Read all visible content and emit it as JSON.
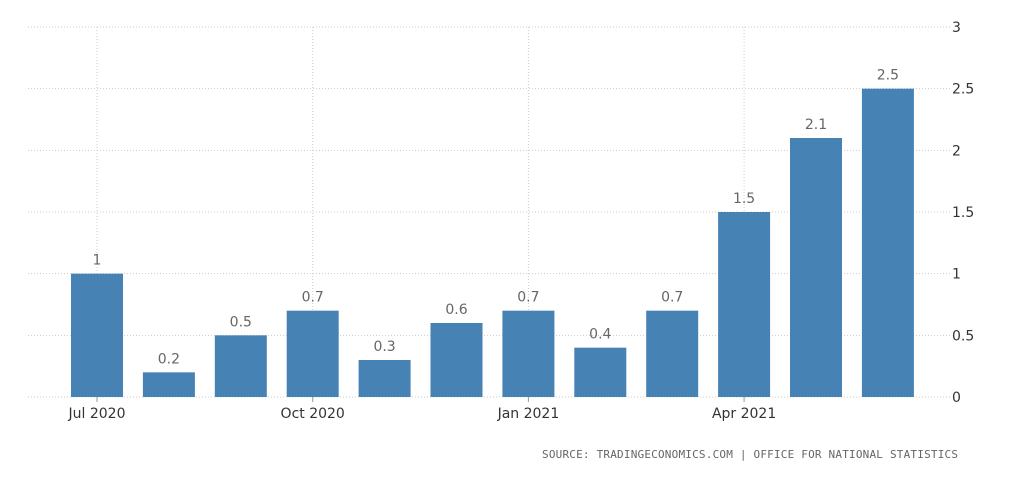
{
  "chart_data": {
    "type": "bar",
    "x": [
      "2020-07",
      "2020-08",
      "2020-09",
      "2020-10",
      "2020-11",
      "2020-12",
      "2021-01",
      "2021-02",
      "2021-03",
      "2021-04",
      "2021-05",
      "2021-06"
    ],
    "values": [
      1,
      0.2,
      0.5,
      0.7,
      0.3,
      0.6,
      0.7,
      0.4,
      0.7,
      1.5,
      2.1,
      2.5
    ],
    "data_labels": [
      "1",
      "0.2",
      "0.5",
      "0.7",
      "0.3",
      "0.6",
      "0.7",
      "0.4",
      "0.7",
      "1.5",
      "2.1",
      "2.5"
    ],
    "x_ticks": [
      {
        "label": "Jul 2020",
        "index": 0
      },
      {
        "label": "Oct 2020",
        "index": 3
      },
      {
        "label": "Jan 2021",
        "index": 6
      },
      {
        "label": "Apr 2021",
        "index": 9
      }
    ],
    "y_ticks": [
      "0",
      "0.5",
      "1",
      "1.5",
      "2",
      "2.5",
      "3"
    ],
    "ylim": [
      0,
      3
    ],
    "y_axis_side": "right",
    "grid": true,
    "bar_color": "#4682b4",
    "title": "",
    "xlabel": "",
    "ylabel": ""
  },
  "source": "SOURCE: TRADINGECONOMICS.COM | OFFICE FOR NATIONAL STATISTICS"
}
